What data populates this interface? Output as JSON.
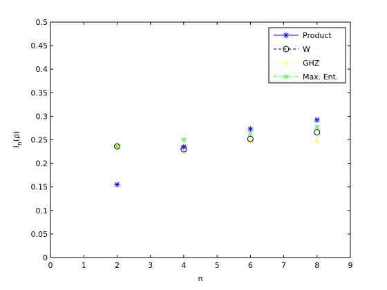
{
  "chart_data": {
    "type": "scatter",
    "title": "",
    "xlabel": "n",
    "ylabel": {
      "main": "I",
      "sub": "n",
      "rest": "(ρ)"
    },
    "xlim": [
      0,
      9
    ],
    "ylim": [
      0,
      0.5
    ],
    "xticks": [
      0,
      1,
      2,
      3,
      4,
      5,
      6,
      7,
      8,
      9
    ],
    "yticks": [
      0,
      0.05,
      0.1,
      0.15,
      0.2,
      0.25,
      0.3,
      0.35,
      0.4,
      0.45,
      0.5
    ],
    "ytick_labels": [
      "0",
      "0.05",
      "0.1",
      "0.15",
      "0.2",
      "0.25",
      "0.3",
      "0.35",
      "0.4",
      "0.45",
      "0.5"
    ],
    "grid": false,
    "legend_position": "top-right",
    "series": [
      {
        "name": "Product",
        "color": "#0000ff",
        "marker": "asterisk",
        "line_style": "solid",
        "x": [
          2,
          4,
          6,
          8
        ],
        "y": [
          0.155,
          0.235,
          0.273,
          0.292
        ]
      },
      {
        "name": "W",
        "color": "#000000",
        "marker": "circle",
        "line_style": "dashed",
        "x": [
          2,
          4,
          6,
          8
        ],
        "y": [
          0.236,
          0.23,
          0.252,
          0.266
        ]
      },
      {
        "name": "GHZ",
        "color": "#ffff00",
        "marker": "plus",
        "line_style": "dotted",
        "x": [
          2,
          4,
          6,
          8
        ],
        "y": [
          0.236,
          0.238,
          0.247,
          0.248
        ]
      },
      {
        "name": "Max. Ent.",
        "color": "#00ff00",
        "marker": "cross",
        "line_style": "dashdot",
        "x": [
          2,
          4,
          6,
          8
        ],
        "y": [
          0.236,
          0.25,
          0.263,
          0.277
        ]
      }
    ]
  }
}
